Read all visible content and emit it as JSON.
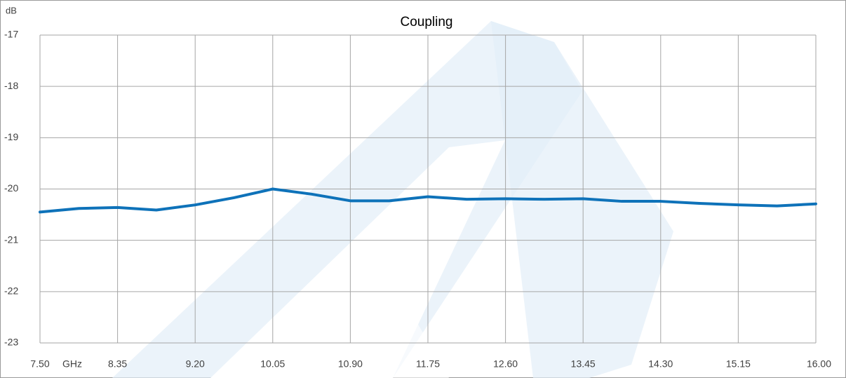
{
  "chart_data": {
    "type": "line",
    "title": "Coupling",
    "y_label": "dB",
    "x_label": "GHz",
    "x": [
      7.5,
      7.925,
      8.35,
      8.775,
      9.2,
      9.625,
      10.05,
      10.475,
      10.9,
      11.325,
      11.75,
      12.175,
      12.6,
      13.025,
      13.45,
      13.875,
      14.3,
      14.725,
      15.15,
      15.575,
      16.0
    ],
    "series": [
      {
        "name": "Coupling",
        "color": "#0e72b9",
        "values": [
          -20.45,
          -20.38,
          -20.36,
          -20.41,
          -20.31,
          -20.17,
          -20.0,
          -20.1,
          -20.23,
          -20.23,
          -20.15,
          -20.2,
          -20.19,
          -20.2,
          -20.19,
          -20.24,
          -20.24,
          -20.28,
          -20.31,
          -20.33,
          -20.29
        ]
      }
    ],
    "xlim": [
      7.5,
      16.0
    ],
    "xticks": [
      {
        "value": 7.5,
        "label": "7.50"
      },
      8.35,
      {
        "value": 9.2,
        "label": "9.20"
      },
      10.05,
      {
        "value": 10.9,
        "label": "10.90"
      },
      11.75,
      {
        "value": 12.6,
        "label": "12.60"
      },
      13.45,
      {
        "value": 14.3,
        "label": "14.30"
      },
      15.15,
      {
        "value": 16.0,
        "label": "16.00"
      }
    ],
    "ylim": [
      -23,
      -17
    ],
    "yticks": [
      -23,
      -22,
      -21,
      -20,
      -19,
      -18,
      -17
    ],
    "grid": true
  }
}
